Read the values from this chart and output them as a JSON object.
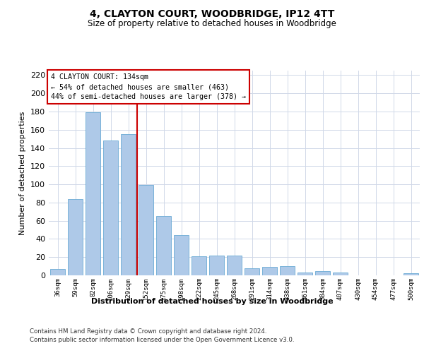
{
  "title1": "4, CLAYTON COURT, WOODBRIDGE, IP12 4TT",
  "title2": "Size of property relative to detached houses in Woodbridge",
  "xlabel": "Distribution of detached houses by size in Woodbridge",
  "ylabel": "Number of detached properties",
  "categories": [
    "36sqm",
    "59sqm",
    "82sqm",
    "106sqm",
    "129sqm",
    "152sqm",
    "175sqm",
    "198sqm",
    "222sqm",
    "245sqm",
    "268sqm",
    "291sqm",
    "314sqm",
    "338sqm",
    "361sqm",
    "384sqm",
    "407sqm",
    "430sqm",
    "454sqm",
    "477sqm",
    "500sqm"
  ],
  "values": [
    7,
    84,
    179,
    148,
    155,
    99,
    65,
    44,
    21,
    22,
    22,
    8,
    9,
    10,
    3,
    5,
    3,
    0,
    0,
    0,
    2
  ],
  "bar_color": "#aec9e8",
  "bar_edge_color": "#6aaad4",
  "vline_x": 4.5,
  "vline_color": "#cc0000",
  "annotation_text": "4 CLAYTON COURT: 134sqm\n← 54% of detached houses are smaller (463)\n44% of semi-detached houses are larger (378) →",
  "annotation_box_color": "#ffffff",
  "annotation_box_edge": "#cc0000",
  "ylim": [
    0,
    225
  ],
  "yticks": [
    0,
    20,
    40,
    60,
    80,
    100,
    120,
    140,
    160,
    180,
    200,
    220
  ],
  "footer1": "Contains HM Land Registry data © Crown copyright and database right 2024.",
  "footer2": "Contains public sector information licensed under the Open Government Licence v3.0.",
  "bg_color": "#ffffff",
  "plot_bg_color": "#ffffff",
  "grid_color": "#d0d8e8"
}
